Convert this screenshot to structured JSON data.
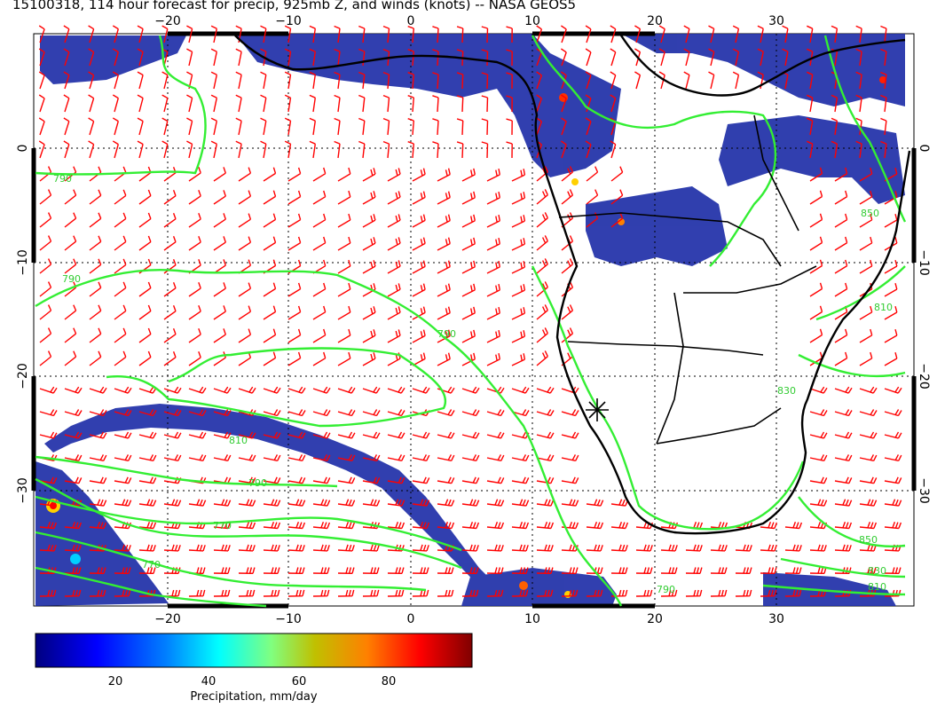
{
  "title": "15100318, 114 hour forecast for precip, 925mb Z, and winds (knots) -- NASA GEOS5",
  "x_axis_labels": [
    "−20",
    "−10",
    "0",
    "10",
    "20",
    "30"
  ],
  "y_axis_labels": [
    "0",
    "−10",
    "−20",
    "−30"
  ],
  "contour_labels": [
    "790",
    "790",
    "810",
    "790",
    "770",
    "770",
    "790",
    "790",
    "850",
    "830",
    "810",
    "850",
    "810",
    "830"
  ],
  "colorbar": {
    "label": "Precipitation, mm/day",
    "ticks": [
      "20",
      "40",
      "60",
      "80"
    ],
    "colors": [
      "#000080",
      "#0000ff",
      "#0080ff",
      "#00ffff",
      "#80ff80",
      "#c0c000",
      "#ff8000",
      "#ff0000",
      "#800000"
    ]
  },
  "colors": {
    "wind_barbs": "#ff0000",
    "contours": "#33ee33",
    "coastlines": "#000000",
    "precip_main": "#1f2fa8"
  },
  "marker": "star-marker"
}
